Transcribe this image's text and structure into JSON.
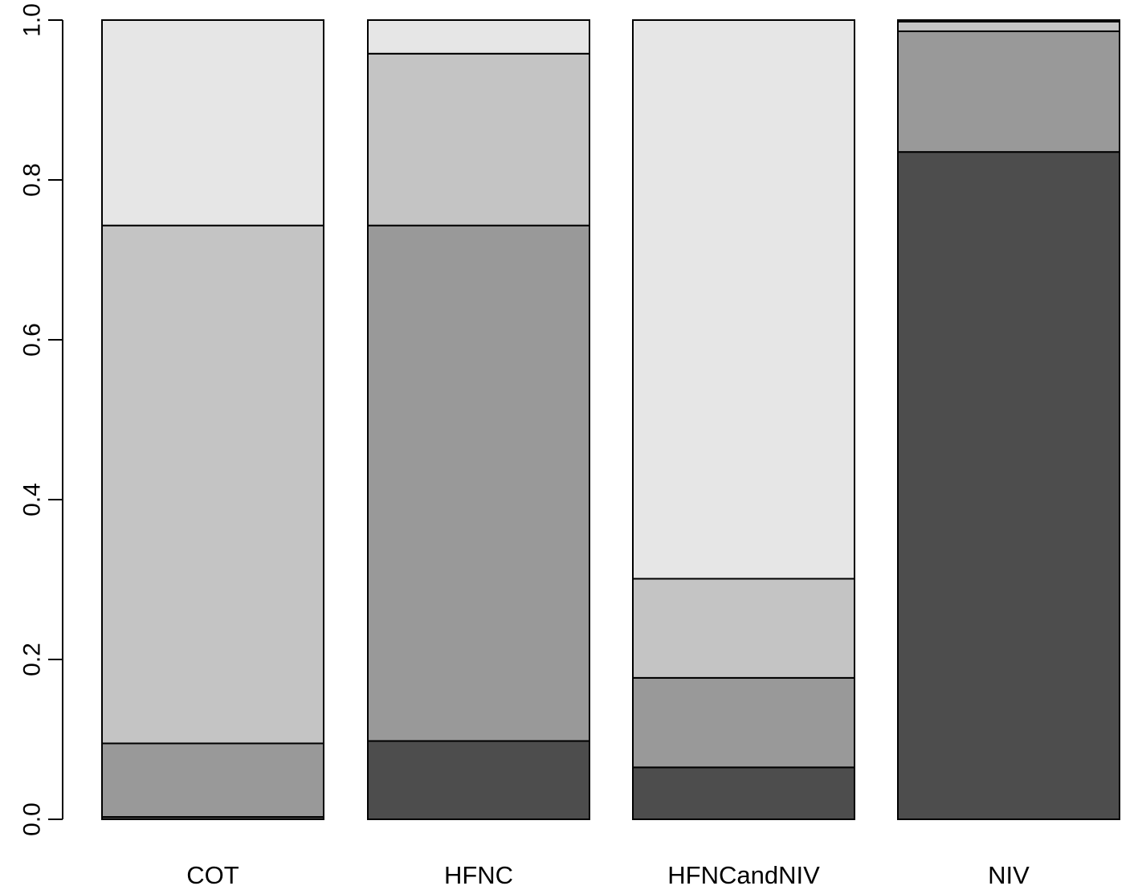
{
  "chart_data": {
    "type": "bar",
    "stacked": true,
    "categories": [
      "COT",
      "HFNC",
      "HFNCandNIV",
      "NIV"
    ],
    "series": [
      {
        "color": "#4d4d4d",
        "values": [
          0.003,
          0.098,
          0.065,
          0.835
        ]
      },
      {
        "color": "#999999",
        "values": [
          0.092,
          0.645,
          0.112,
          0.151
        ]
      },
      {
        "color": "#c4c4c4",
        "values": [
          0.648,
          0.215,
          0.124,
          0.012
        ]
      },
      {
        "color": "#e6e6e6",
        "values": [
          0.257,
          0.042,
          0.699,
          0.002
        ]
      }
    ],
    "ylim": [
      0,
      1
    ],
    "yticks": [
      0.0,
      0.2,
      0.4,
      0.6,
      0.8,
      1.0
    ],
    "ytick_labels": [
      "0.0",
      "0.2",
      "0.4",
      "0.6",
      "0.8",
      "1.0"
    ],
    "xlabel": "",
    "ylabel": "",
    "title": "",
    "grid": false,
    "legend": false
  }
}
